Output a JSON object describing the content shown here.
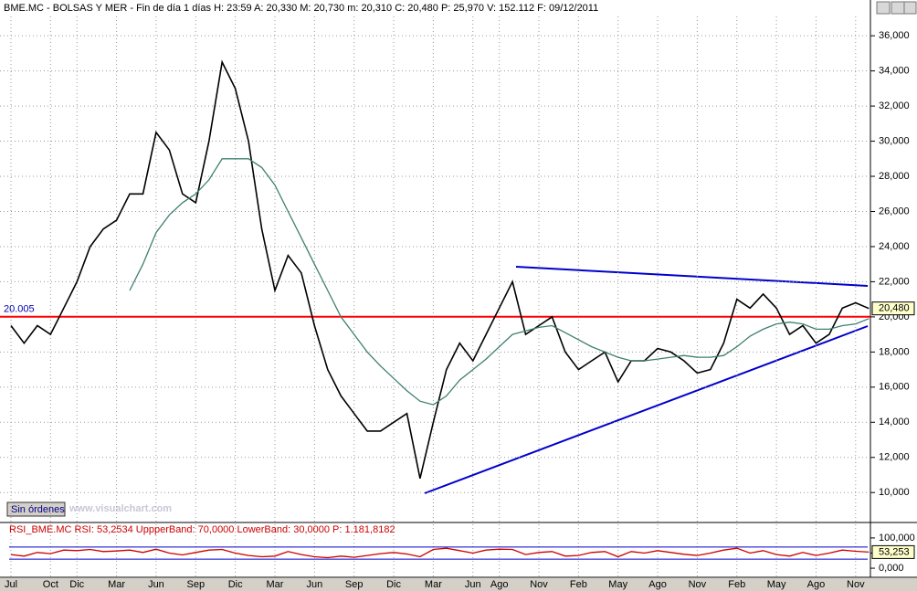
{
  "header": {
    "title": "BME.MC - BOLSAS Y MER - Fin de día 1 días H: 23:59 A: 20,330 M: 20,730 m: 20,310 C: 20,480 P: 25,970 V: 152.112 F: 09/12/2011"
  },
  "button": "Sin órdenes",
  "watermark": "www.visualchart.com",
  "chart_data": [
    {
      "type": "line",
      "categories": [
        "Jul",
        null,
        null,
        "Oct",
        null,
        "Dic",
        null,
        null,
        "Mar",
        null,
        null,
        "Jun",
        null,
        null,
        "Sep",
        null,
        null,
        "Dic",
        null,
        null,
        "Mar",
        null,
        null,
        "Jun",
        null,
        null,
        "Sep",
        null,
        null,
        "Dic",
        null,
        null,
        "Mar",
        null,
        null,
        "Jun",
        null,
        "Ago",
        null,
        null,
        "Nov",
        null,
        null,
        "Feb",
        null,
        null,
        "May",
        null,
        null,
        "Ago",
        null,
        null,
        "Nov",
        null,
        null,
        "Feb",
        null,
        null,
        "May",
        null,
        null,
        "Ago",
        null,
        null,
        "Nov",
        null
      ],
      "series": [
        {
          "color": "#000000",
          "values": [
            19.5,
            18.5,
            19.5,
            19,
            20.5,
            22,
            24,
            25,
            25.5,
            27,
            27,
            30.5,
            29.5,
            27,
            26.5,
            30,
            34.5,
            33,
            30,
            25,
            21.5,
            23.5,
            22.5,
            19.5,
            17,
            15.5,
            14.5,
            13.5,
            13.5,
            14,
            14.5,
            10.8,
            14,
            17,
            18.5,
            17.5,
            19,
            20.5,
            22,
            19,
            19.5,
            20,
            18,
            17,
            17.5,
            18,
            16.3,
            17.5,
            17.5,
            18.2,
            18,
            17.5,
            16.8,
            17,
            18.5,
            21,
            20.5,
            21.3,
            20.5,
            19,
            19.5,
            18.5,
            19,
            20.5,
            20.8,
            20.48
          ],
          "value_labels": [
            null,
            null,
            null,
            null,
            null,
            null,
            null,
            null,
            null,
            null,
            null,
            null,
            null,
            null,
            null,
            null,
            null,
            null,
            null,
            null,
            null,
            null,
            null,
            null,
            null,
            null,
            null,
            null,
            null,
            null,
            null,
            null,
            null,
            null,
            null,
            null,
            null,
            null,
            null,
            null,
            null,
            null,
            null,
            null,
            null,
            null,
            null,
            null,
            null,
            null,
            null,
            null,
            null,
            null,
            null,
            null,
            null,
            null,
            null,
            null,
            null,
            null,
            null,
            null,
            null,
            "20,480"
          ]
        },
        {
          "color": "#3f7f70",
          "values": [
            null,
            null,
            null,
            null,
            null,
            null,
            null,
            null,
            null,
            21.5,
            23,
            24.8,
            25.8,
            26.5,
            27,
            27.8,
            29,
            29,
            29,
            28.5,
            27.5,
            26,
            24.5,
            23,
            21.5,
            20,
            19,
            18,
            17.2,
            16.5,
            15.8,
            15.2,
            15,
            15.5,
            16.4,
            17,
            17.6,
            18.3,
            19,
            19.2,
            19.4,
            19.5,
            19.1,
            18.7,
            18.3,
            18,
            17.7,
            17.5,
            17.5,
            17.6,
            17.7,
            17.8,
            17.7,
            17.7,
            17.8,
            18.3,
            18.9,
            19.3,
            19.6,
            19.7,
            19.6,
            19.3,
            19.3,
            19.5,
            19.6,
            19.9
          ]
        }
      ],
      "hline": {
        "value": 20.005,
        "color": "#ff0000"
      },
      "ylim": [
        8.4,
        37.1
      ],
      "yticks": [
        {
          "value": 10,
          "label": "10,000"
        },
        {
          "value": 12,
          "label": "12,000"
        },
        {
          "value": 14,
          "label": "14,000"
        },
        {
          "value": 16,
          "label": "16,000"
        },
        {
          "value": 18,
          "label": "18,000"
        },
        {
          "value": 20,
          "label": "20,000"
        },
        {
          "value": 22,
          "label": "22,000"
        },
        {
          "value": 24,
          "label": "24,000"
        },
        {
          "value": 26,
          "label": "26,000"
        },
        {
          "value": 28,
          "label": "28,000"
        },
        {
          "value": 30,
          "label": "30,000"
        },
        {
          "value": 32,
          "label": "32,000"
        },
        {
          "value": 34,
          "label": "34,000"
        },
        {
          "value": 36,
          "label": "36,000"
        }
      ],
      "grid": true
    },
    {
      "type": "line",
      "title": "RSI_BME.MC RSI: 53,2534 UppperBand: 70,0000 LowerBand: 30,0000 P: 1.181,8182",
      "series": [
        {
          "color": "#cc0000",
          "values": [
            45,
            40,
            52,
            48,
            60,
            58,
            62,
            55,
            57,
            60,
            52,
            63,
            50,
            44,
            52,
            60,
            62,
            50,
            42,
            38,
            40,
            55,
            45,
            38,
            35,
            40,
            36,
            42,
            48,
            52,
            47,
            38,
            62,
            66,
            58,
            50,
            60,
            63,
            62,
            45,
            52,
            55,
            40,
            42,
            52,
            55,
            38,
            55,
            50,
            58,
            52,
            46,
            42,
            50,
            60,
            66,
            50,
            58,
            45,
            40,
            52,
            42,
            50,
            60,
            56,
            53.253
          ],
          "value_labels": [
            null,
            null,
            null,
            null,
            null,
            null,
            null,
            null,
            null,
            null,
            null,
            null,
            null,
            null,
            null,
            null,
            null,
            null,
            null,
            null,
            null,
            null,
            null,
            null,
            null,
            null,
            null,
            null,
            null,
            null,
            null,
            null,
            null,
            null,
            null,
            null,
            null,
            null,
            null,
            null,
            null,
            null,
            null,
            null,
            null,
            null,
            null,
            null,
            null,
            null,
            null,
            null,
            null,
            null,
            null,
            null,
            null,
            null,
            null,
            null,
            null,
            null,
            null,
            null,
            null,
            "53,253"
          ]
        }
      ],
      "bands": [
        70,
        30
      ],
      "band_color": "#0000cc",
      "ylim": [
        -30,
        145
      ],
      "yticks": [
        {
          "value": 0,
          "label": "0,000"
        },
        {
          "value": 50,
          "label": "50,000"
        },
        {
          "value": 100,
          "label": "100,000"
        }
      ],
      "grid": false
    }
  ]
}
